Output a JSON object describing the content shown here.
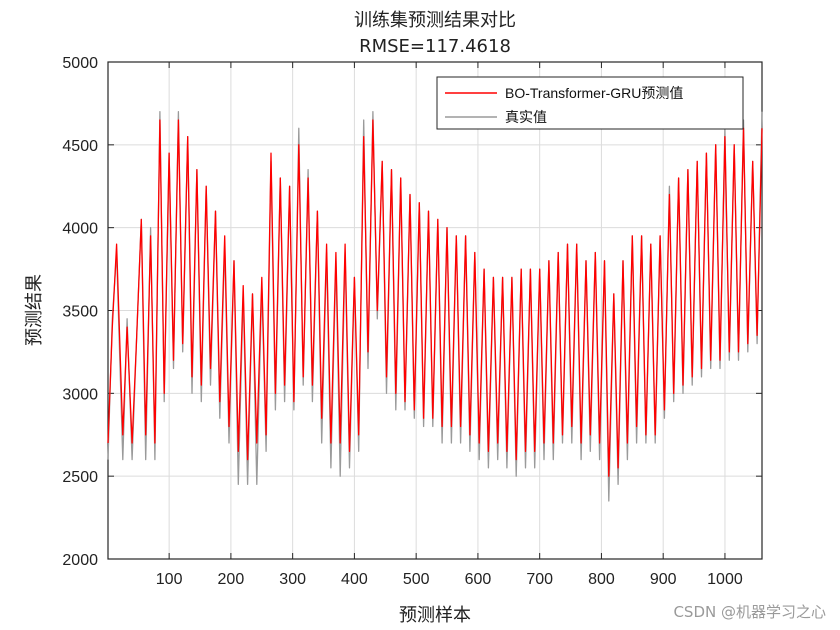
{
  "chart_data": {
    "type": "line",
    "title": "训练集预测结果对比",
    "subtitle": "RMSE=117.4618",
    "xlabel": "预测样本",
    "ylabel": "预测结果",
    "xlim": [
      1,
      1060
    ],
    "ylim": [
      2000,
      5000
    ],
    "xticks": [
      100,
      200,
      300,
      400,
      500,
      600,
      700,
      800,
      900,
      1000
    ],
    "yticks": [
      2000,
      2500,
      3000,
      3500,
      4000,
      4500,
      5000
    ],
    "grid": true,
    "legend_position": "top-right",
    "series": [
      {
        "name": "BO-Transformer-GRU预测值",
        "color": "#ff0000",
        "x": [
          1,
          8,
          15,
          25,
          32,
          40,
          47,
          55,
          62,
          70,
          77,
          85,
          92,
          100,
          107,
          115,
          122,
          130,
          137,
          145,
          152,
          160,
          167,
          175,
          182,
          190,
          197,
          205,
          212,
          220,
          227,
          235,
          242,
          250,
          257,
          265,
          272,
          280,
          287,
          295,
          302,
          310,
          317,
          325,
          332,
          340,
          347,
          355,
          362,
          370,
          377,
          385,
          392,
          400,
          407,
          415,
          422,
          430,
          437,
          445,
          452,
          460,
          467,
          475,
          482,
          490,
          497,
          505,
          512,
          520,
          527,
          535,
          542,
          550,
          557,
          565,
          572,
          580,
          587,
          595,
          602,
          610,
          617,
          625,
          632,
          640,
          647,
          655,
          662,
          670,
          677,
          685,
          692,
          700,
          707,
          715,
          722,
          730,
          737,
          745,
          752,
          760,
          767,
          775,
          782,
          790,
          797,
          805,
          812,
          820,
          827,
          835,
          842,
          850,
          857,
          865,
          872,
          880,
          887,
          895,
          902,
          910,
          917,
          925,
          932,
          940,
          947,
          955,
          962,
          970,
          977,
          985,
          992,
          1000,
          1007,
          1015,
          1022,
          1030,
          1037,
          1045,
          1052,
          1060
        ],
        "values": [
          2700,
          3400,
          3900,
          2750,
          3400,
          2700,
          3300,
          4050,
          2750,
          3950,
          2700,
          4650,
          3000,
          4450,
          3200,
          4650,
          3300,
          4550,
          3100,
          4350,
          3050,
          4250,
          3150,
          4100,
          2950,
          3950,
          2800,
          3800,
          2650,
          3650,
          2600,
          3600,
          2700,
          3700,
          2750,
          4450,
          3000,
          4300,
          3050,
          4250,
          2950,
          4500,
          3100,
          4300,
          3050,
          4100,
          2850,
          3900,
          2700,
          3850,
          2700,
          3900,
          2650,
          3700,
          2750,
          4550,
          3250,
          4650,
          3500,
          4400,
          3100,
          4350,
          3000,
          4300,
          2950,
          4200,
          2900,
          4150,
          2850,
          4100,
          2850,
          4050,
          2800,
          4000,
          2800,
          3950,
          2800,
          3950,
          2750,
          3850,
          2700,
          3750,
          2650,
          3700,
          2700,
          3700,
          2650,
          3700,
          2600,
          3750,
          2650,
          3750,
          2650,
          3750,
          2700,
          3800,
          2700,
          3850,
          2750,
          3900,
          2800,
          3900,
          2700,
          3800,
          2750,
          3850,
          2700,
          3800,
          2500,
          3600,
          2550,
          3800,
          2700,
          3950,
          2800,
          3950,
          2750,
          3900,
          2750,
          3950,
          2900,
          4200,
          3000,
          4300,
          3050,
          4350,
          3100,
          4400,
          3150,
          4450,
          3200,
          4500,
          3200,
          4550,
          3250,
          4500,
          3250,
          4600,
          3300,
          4400,
          3350,
          4600
        ],
        "note_values_type": "estimated"
      },
      {
        "name": "真实值",
        "color": "#9a9a9a",
        "x": [
          1,
          8,
          15,
          25,
          32,
          40,
          47,
          55,
          62,
          70,
          77,
          85,
          92,
          100,
          107,
          115,
          122,
          130,
          137,
          145,
          152,
          160,
          167,
          175,
          182,
          190,
          197,
          205,
          212,
          220,
          227,
          235,
          242,
          250,
          257,
          265,
          272,
          280,
          287,
          295,
          302,
          310,
          317,
          325,
          332,
          340,
          347,
          355,
          362,
          370,
          377,
          385,
          392,
          400,
          407,
          415,
          422,
          430,
          437,
          445,
          452,
          460,
          467,
          475,
          482,
          490,
          497,
          505,
          512,
          520,
          527,
          535,
          542,
          550,
          557,
          565,
          572,
          580,
          587,
          595,
          602,
          610,
          617,
          625,
          632,
          640,
          647,
          655,
          662,
          670,
          677,
          685,
          692,
          700,
          707,
          715,
          722,
          730,
          737,
          745,
          752,
          760,
          767,
          775,
          782,
          790,
          797,
          805,
          812,
          820,
          827,
          835,
          842,
          850,
          857,
          865,
          872,
          880,
          887,
          895,
          902,
          910,
          917,
          925,
          932,
          940,
          947,
          955,
          962,
          970,
          977,
          985,
          992,
          1000,
          1007,
          1015,
          1022,
          1030,
          1037,
          1045,
          1052,
          1060
        ],
        "values": [
          2600,
          3450,
          3850,
          2600,
          3450,
          2600,
          3300,
          4050,
          2600,
          4000,
          2600,
          4700,
          2950,
          4450,
          3150,
          4700,
          3250,
          4550,
          3000,
          4350,
          2950,
          4250,
          3050,
          4100,
          2850,
          3900,
          2700,
          3800,
          2450,
          3600,
          2450,
          3600,
          2450,
          3650,
          2650,
          4400,
          2900,
          4300,
          2950,
          4250,
          2900,
          4600,
          3050,
          4350,
          2950,
          4100,
          2700,
          3850,
          2550,
          3800,
          2500,
          3850,
          2550,
          3700,
          2650,
          4650,
          3150,
          4700,
          3450,
          4400,
          3000,
          4350,
          2900,
          4300,
          2900,
          4200,
          2850,
          4150,
          2800,
          4100,
          2800,
          4050,
          2700,
          4000,
          2700,
          3950,
          2700,
          3950,
          2650,
          3850,
          2600,
          3750,
          2550,
          3700,
          2600,
          3700,
          2550,
          3700,
          2500,
          3750,
          2550,
          3750,
          2550,
          3750,
          2600,
          3800,
          2600,
          3850,
          2700,
          3900,
          2700,
          3900,
          2600,
          3800,
          2650,
          3850,
          2600,
          3800,
          2350,
          3600,
          2450,
          3800,
          2600,
          3950,
          2700,
          3950,
          2700,
          3900,
          2700,
          3950,
          2850,
          4250,
          2950,
          4300,
          3000,
          4350,
          3050,
          4400,
          3100,
          4450,
          3150,
          4500,
          3150,
          4600,
          3200,
          4500,
          3200,
          4650,
          3250,
          4400,
          3300,
          4700
        ],
        "note_values_type": "estimated"
      }
    ]
  },
  "watermark": "CSDN @机器学习之心"
}
